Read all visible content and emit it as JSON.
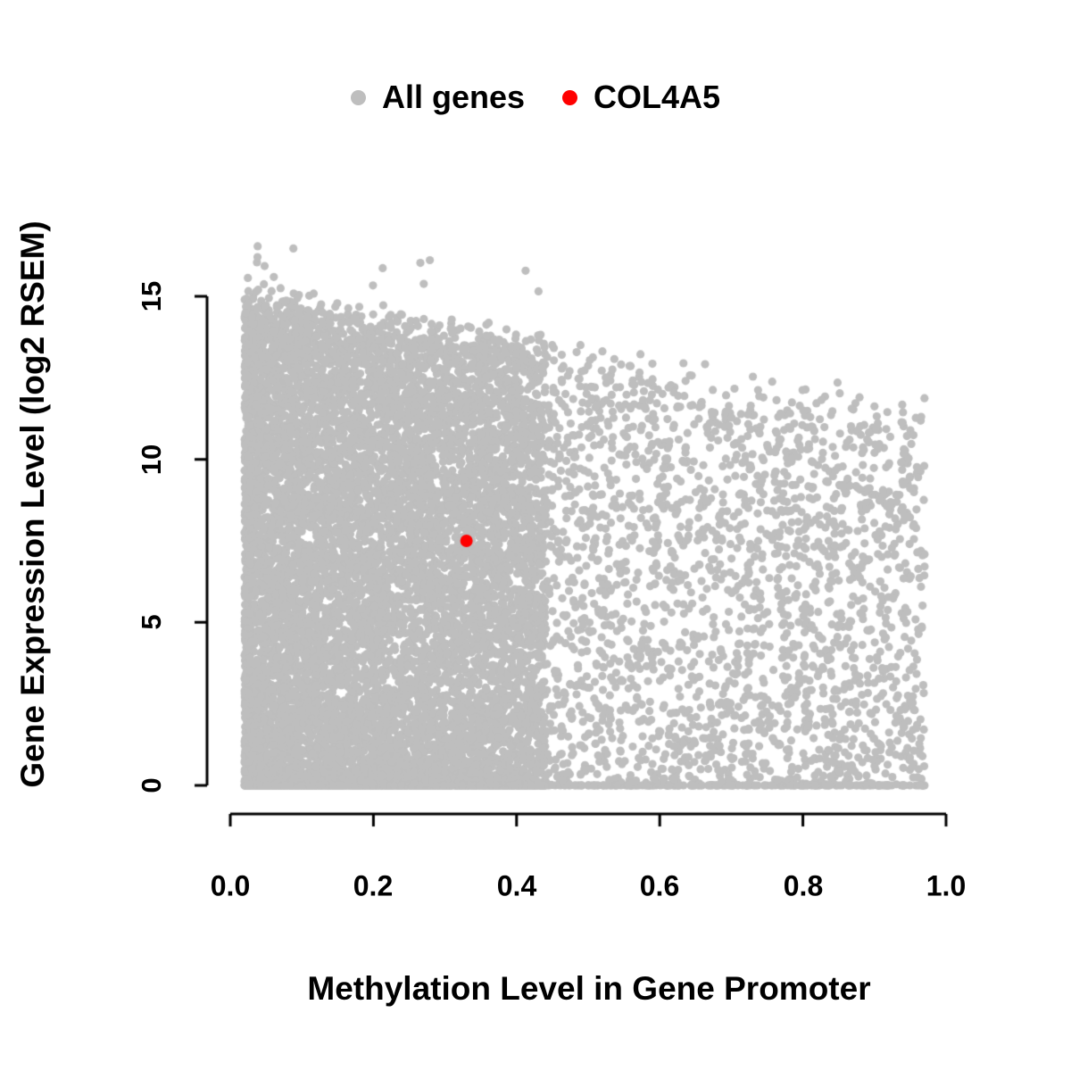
{
  "figure": {
    "background": "#ffffff",
    "text_color": "#000000"
  },
  "legend": {
    "position": "top-center",
    "items": [
      {
        "label": "All genes",
        "color": "#bebebe"
      },
      {
        "label": "COL4A5",
        "color": "#ff0000"
      }
    ]
  },
  "chart_data": {
    "type": "scatter",
    "title": "",
    "xlabel": "Methylation Level in Gene Promoter",
    "ylabel": "Gene Expression Level (log2 RSEM)",
    "xlim": [
      0.0,
      1.0
    ],
    "ylim": [
      0,
      17.5
    ],
    "x_ticks": [
      "0.0",
      "0.2",
      "0.4",
      "0.6",
      "0.8",
      "1.0"
    ],
    "y_ticks": [
      "0",
      "5",
      "10",
      "15"
    ],
    "grid": "off",
    "axis_color": "#000000",
    "point_radius": 4.6,
    "highlight_point_radius": 7,
    "legend_position": "top",
    "series": [
      {
        "name": "All genes",
        "color": "#bebebe",
        "marker": "filled-circle",
        "description": "Dense cloud of ~13,000 genes. Methylation spans 0.02-0.97; expression spans 0-15 (rare outliers to ~17) at low methylation, with the upper envelope declining to ~11.5 as methylation approaches 0.95. A dense band of points lies at expression = 0 across the full methylation range.",
        "generator": {
          "seed": 42,
          "n_points": 13000,
          "x_min": 0.02,
          "x_max": 0.97,
          "env_y0": 15.0,
          "env_slope": -3.8,
          "env_noise": 1.2,
          "bottom_band_fraction": 0.1,
          "low_band_fraction": 0.08,
          "n_outliers": 14,
          "y_outlier_max": 17.1
        }
      },
      {
        "name": "COL4A5",
        "color": "#ff0000",
        "marker": "filled-circle",
        "points": [
          [
            0.33,
            7.5
          ]
        ]
      }
    ]
  }
}
